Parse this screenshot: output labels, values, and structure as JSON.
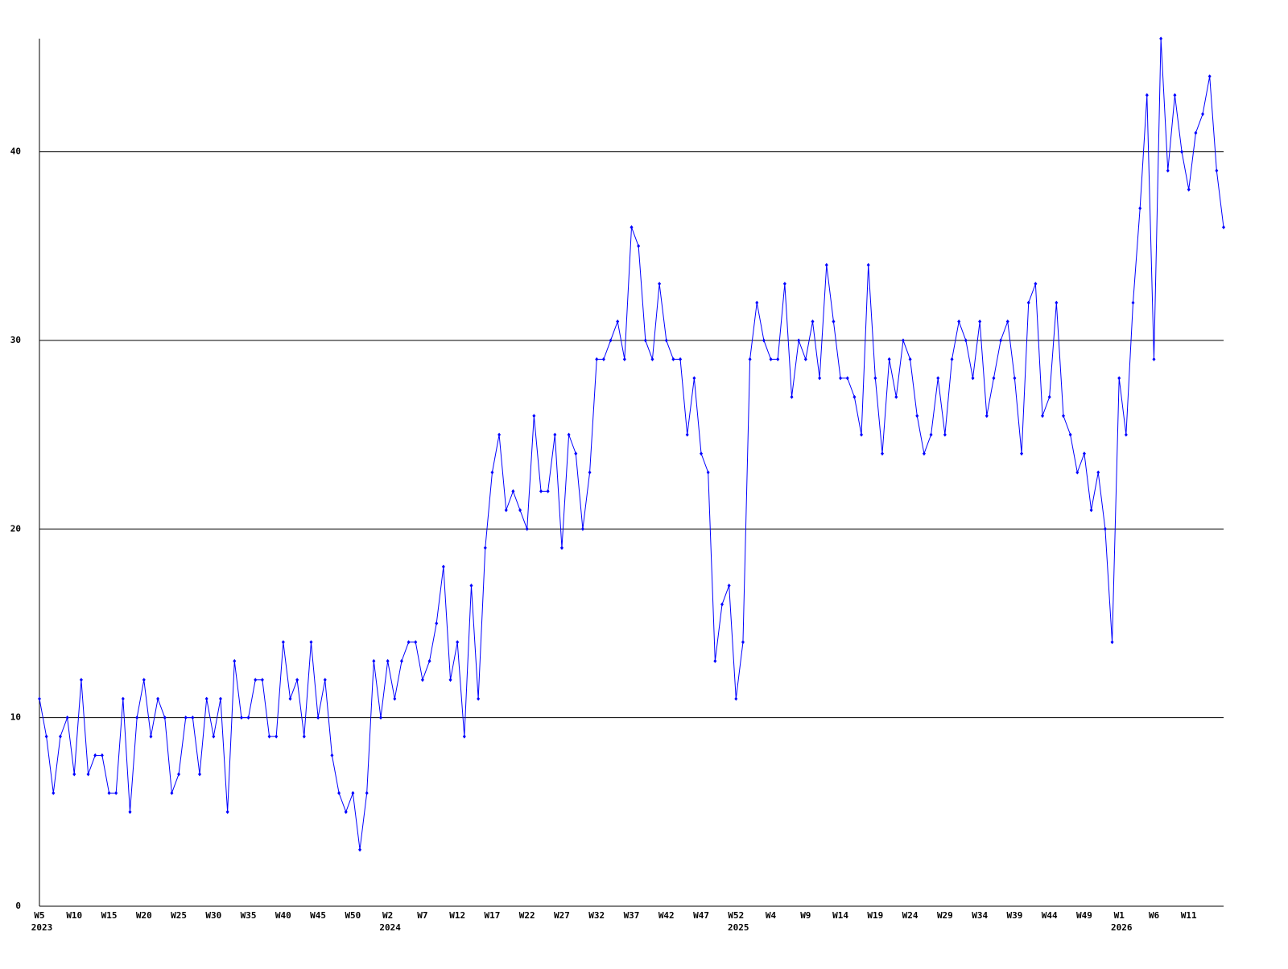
{
  "chart_data": {
    "type": "line",
    "categories": [
      "W5",
      null,
      null,
      null,
      null,
      "W10",
      null,
      null,
      null,
      null,
      "W15",
      null,
      null,
      null,
      null,
      "W20",
      null,
      null,
      null,
      null,
      "W25",
      null,
      null,
      null,
      null,
      "W30",
      null,
      null,
      null,
      null,
      "W35",
      null,
      null,
      null,
      null,
      "W40",
      null,
      null,
      null,
      null,
      "W45",
      null,
      null,
      null,
      null,
      "W50",
      null,
      null,
      null,
      null,
      "W2",
      null,
      null,
      null,
      null,
      "W7",
      null,
      null,
      null,
      null,
      "W12",
      null,
      null,
      null,
      null,
      "W17",
      null,
      null,
      null,
      null,
      "W22",
      null,
      null,
      null,
      null,
      "W27",
      null,
      null,
      null,
      null,
      "W32",
      null,
      null,
      null,
      null,
      "W37",
      null,
      null,
      null,
      null,
      "W42",
      null,
      null,
      null,
      null,
      "W47",
      null,
      null,
      null,
      null,
      "W52",
      null,
      null,
      null,
      null,
      "W4",
      null,
      null,
      null,
      null,
      "W9",
      null,
      null,
      null,
      null,
      "W14",
      null,
      null,
      null,
      null,
      "W19",
      null,
      null,
      null,
      null,
      "W24",
      null,
      null,
      null,
      null,
      "W29",
      null,
      null,
      null,
      null,
      "W34",
      null,
      null,
      null,
      null,
      "W39",
      null,
      null,
      null,
      null,
      "W44",
      null,
      null,
      null,
      null,
      "W49",
      null,
      null,
      null,
      null,
      "W1",
      null,
      null,
      null,
      null,
      "W6",
      null,
      null,
      null,
      null,
      "W11",
      null,
      null,
      null,
      null,
      null
    ],
    "year_labels": [
      "2023",
      null,
      null,
      null,
      null,
      null,
      null,
      null,
      null,
      null,
      null,
      null,
      null,
      null,
      null,
      null,
      null,
      null,
      null,
      null,
      null,
      null,
      null,
      null,
      null,
      null,
      null,
      null,
      null,
      null,
      null,
      null,
      null,
      null,
      null,
      null,
      null,
      null,
      null,
      null,
      null,
      null,
      null,
      null,
      null,
      null,
      null,
      null,
      null,
      null,
      "2024",
      null,
      null,
      null,
      null,
      null,
      null,
      null,
      null,
      null,
      null,
      null,
      null,
      null,
      null,
      null,
      null,
      null,
      null,
      null,
      null,
      null,
      null,
      null,
      null,
      null,
      null,
      null,
      null,
      null,
      null,
      null,
      null,
      null,
      null,
      null,
      null,
      null,
      null,
      null,
      null,
      null,
      null,
      null,
      null,
      null,
      null,
      null,
      null,
      null,
      "2025",
      null,
      null,
      null,
      null,
      null,
      null,
      null,
      null,
      null,
      null,
      null,
      null,
      null,
      null,
      null,
      null,
      null,
      null,
      null,
      null,
      null,
      null,
      null,
      null,
      null,
      null,
      null,
      null,
      null,
      null,
      null,
      null,
      null,
      null,
      null,
      null,
      null,
      null,
      null,
      null,
      null,
      null,
      null,
      null,
      null,
      null,
      null,
      null,
      null,
      null,
      null,
      null,
      null,
      null,
      "2026",
      null,
      null,
      null,
      null,
      null,
      null,
      null,
      null,
      null,
      null,
      null,
      null,
      null,
      null,
      null
    ],
    "series": [
      {
        "color": "#0000ff",
        "values": [
          11,
          9,
          6,
          9,
          10,
          7,
          12,
          7,
          8,
          8,
          6,
          6,
          11,
          5,
          10,
          12,
          9,
          11,
          10,
          6,
          7,
          10,
          10,
          7,
          11,
          9,
          11,
          5,
          13,
          10,
          10,
          12,
          12,
          9,
          9,
          14,
          11,
          12,
          9,
          14,
          10,
          12,
          8,
          6,
          5,
          6,
          3,
          6,
          13,
          10,
          13,
          11,
          13,
          14,
          14,
          12,
          13,
          15,
          18,
          12,
          14,
          9,
          17,
          11,
          19,
          23,
          25,
          21,
          22,
          21,
          20,
          26,
          22,
          22,
          25,
          19,
          25,
          24,
          20,
          23,
          29,
          29,
          30,
          31,
          29,
          36,
          35,
          30,
          29,
          33,
          30,
          29,
          29,
          25,
          28,
          24,
          23,
          13,
          16,
          17,
          11,
          14,
          29,
          32,
          30,
          29,
          29,
          33,
          27,
          30,
          29,
          31,
          28,
          34,
          31,
          28,
          28,
          27,
          25,
          34,
          28,
          24,
          29,
          27,
          30,
          29,
          26,
          24,
          25,
          28,
          25,
          29,
          31,
          30,
          28,
          31,
          26,
          28,
          30,
          31,
          28,
          24,
          32,
          33,
          26,
          27,
          32,
          26,
          25,
          23,
          24,
          21,
          23,
          20,
          14,
          28,
          25,
          32,
          37,
          43,
          29,
          46,
          39,
          43,
          40,
          38,
          41,
          42,
          44,
          39,
          36
        ]
      }
    ],
    "ylim": [
      0,
      46
    ],
    "yticks": [
      0,
      10,
      20,
      30,
      40
    ],
    "grid": true
  }
}
